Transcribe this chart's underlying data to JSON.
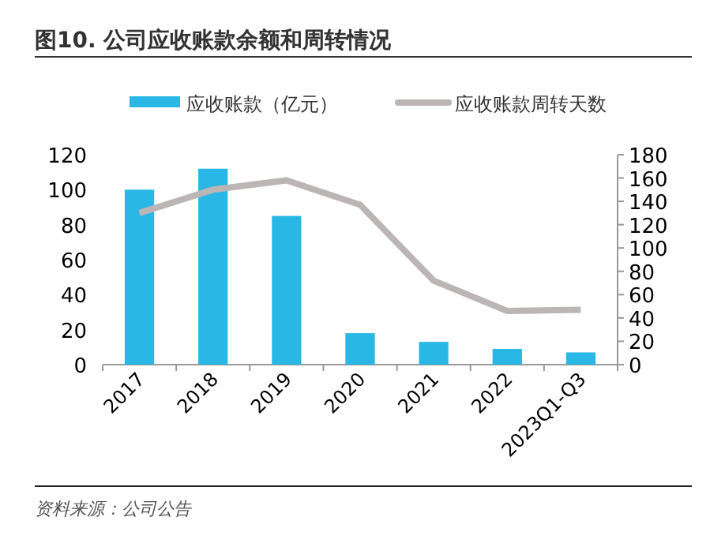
{
  "chart_data": {
    "type": "bar",
    "title": "图10. 公司应收账款余额和周转情况",
    "categories": [
      "2017",
      "2018",
      "2019",
      "2020",
      "2021",
      "2022",
      "2023Q1-Q3"
    ],
    "series": [
      {
        "name": "应收账款（亿元）",
        "color": "#29b8e5",
        "values": [
          100,
          112,
          85,
          18,
          13,
          9,
          7
        ]
      },
      {
        "name": "应收账款周转天数",
        "type": "line",
        "axis": "y2",
        "color": "#bcb5b5",
        "values": [
          130,
          150,
          158,
          137,
          72,
          46,
          47
        ]
      }
    ],
    "ylim": [
      0,
      120
    ],
    "yticks": [
      0,
      20,
      40,
      60,
      80,
      100,
      120
    ],
    "y2lim": [
      0,
      180
    ],
    "y2ticks": [
      0,
      20,
      40,
      60,
      80,
      100,
      120,
      140,
      160,
      180
    ],
    "legend": "top",
    "grid": false,
    "marker": "none",
    "annotations": [
      "资料来源：公司公告"
    ]
  }
}
